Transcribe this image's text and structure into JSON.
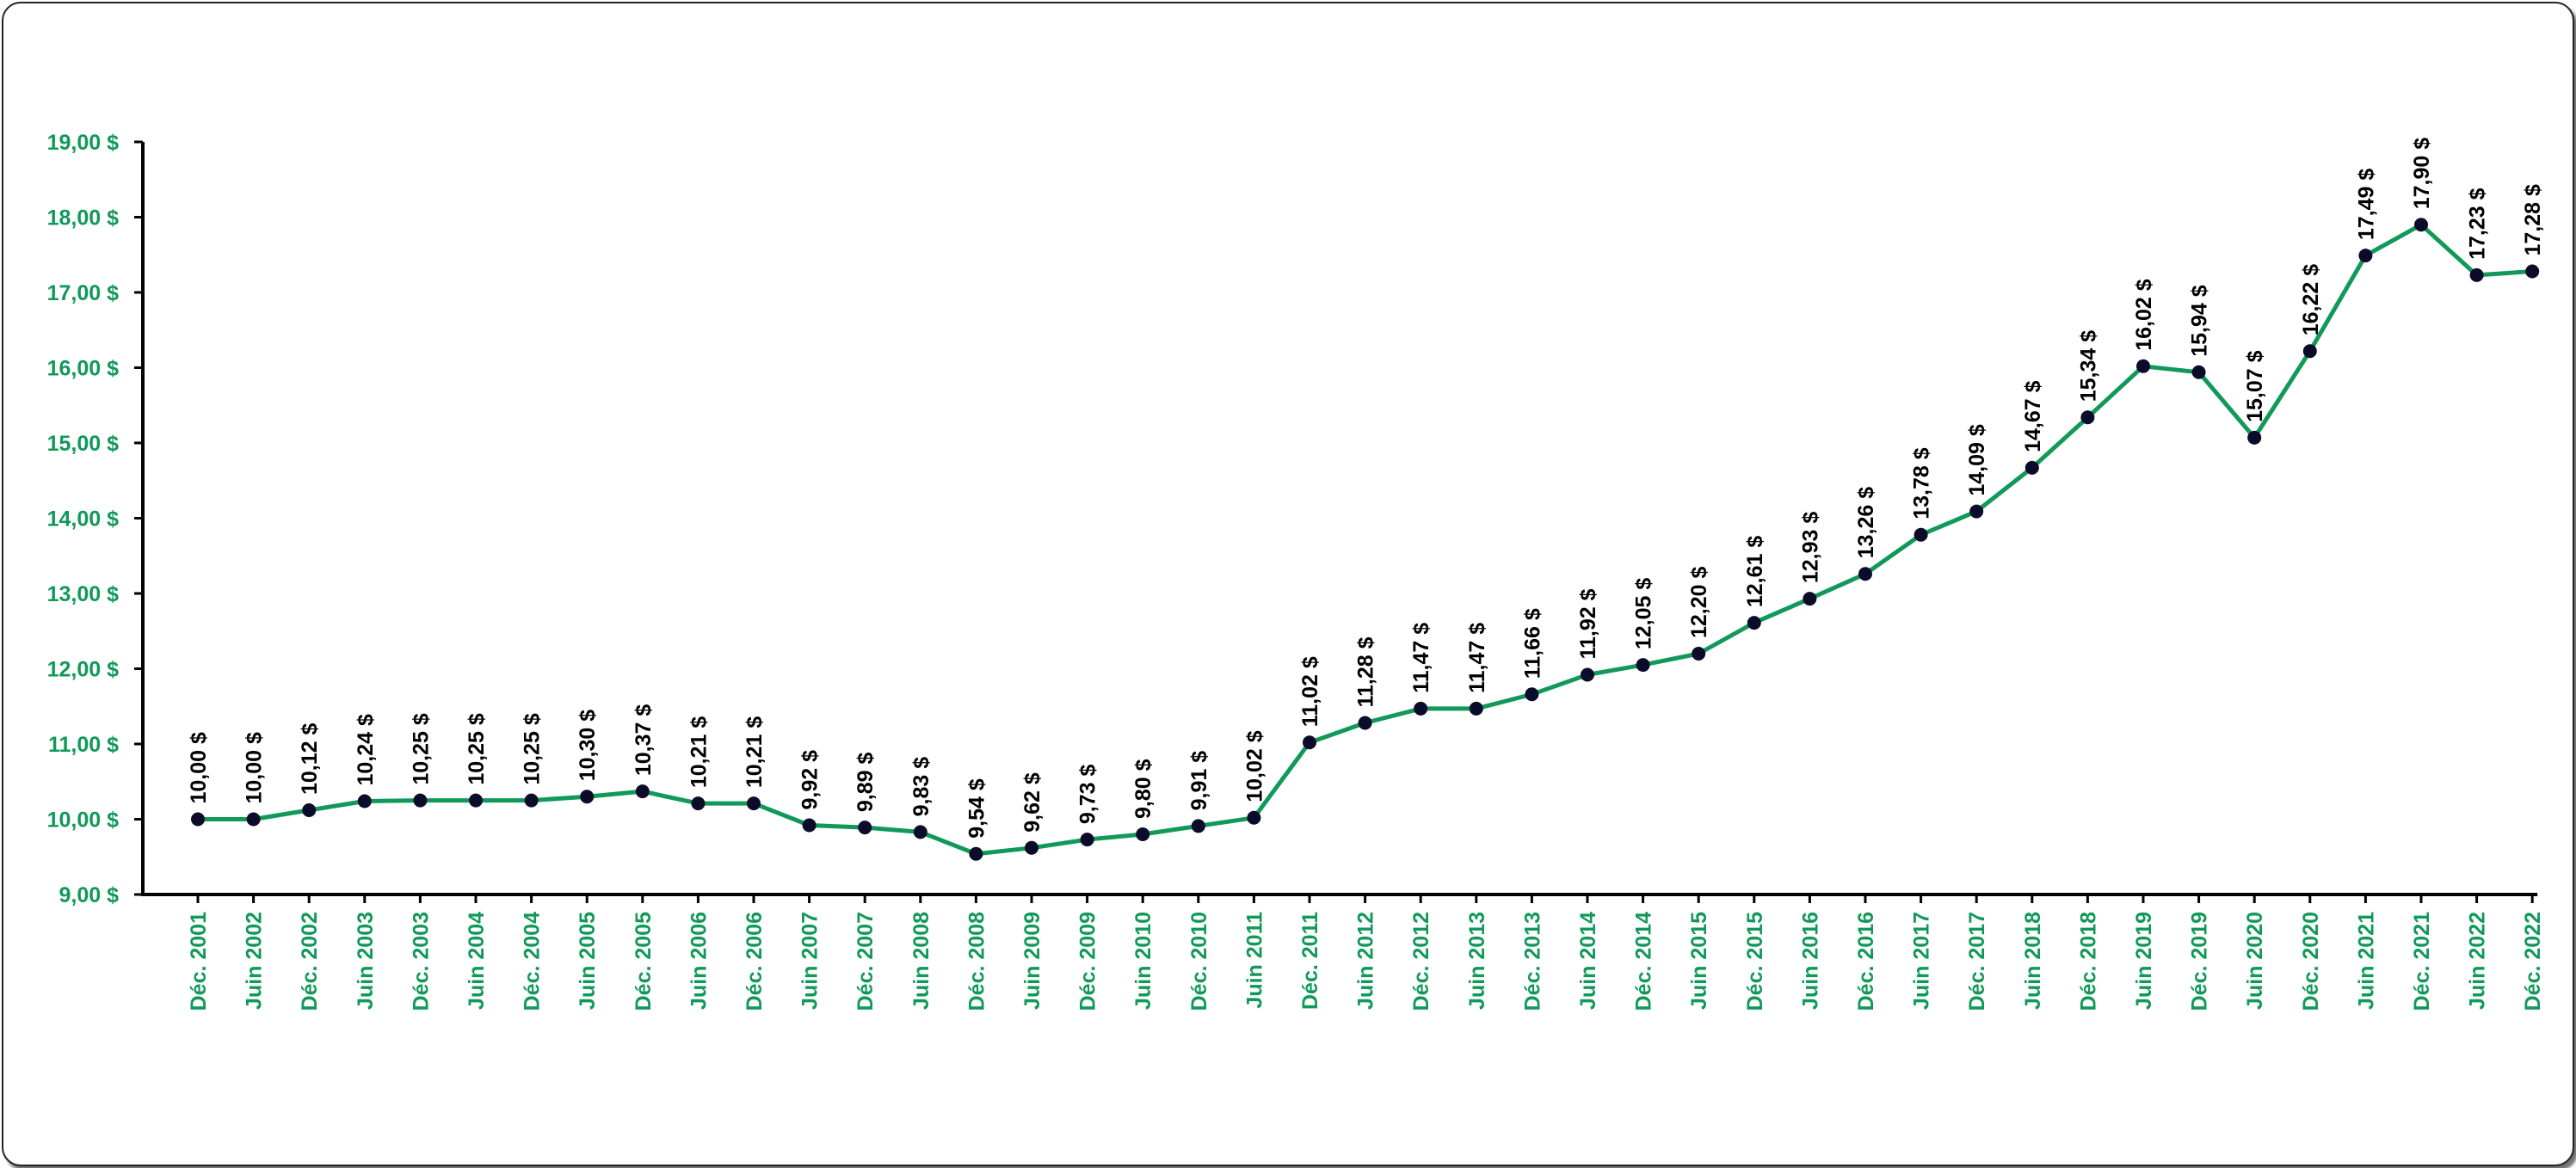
{
  "chart_data": {
    "type": "line",
    "title": "",
    "xlabel": "",
    "ylabel": "",
    "ylim": [
      9,
      19
    ],
    "yticks": [
      "9,00 $",
      "10,00 $",
      "11,00 $",
      "12,00 $",
      "13,00 $",
      "14,00 $",
      "15,00 $",
      "16,00 $",
      "17,00 $",
      "18,00 $",
      "19,00 $"
    ],
    "categories": [
      "Déc. 2001",
      "Juin 2002",
      "Déc. 2002",
      "Juin 2003",
      "Déc. 2003",
      "Juin 2004",
      "Déc. 2004",
      "Juin 2005",
      "Déc. 2005",
      "Juin 2006",
      "Déc. 2006",
      "Juin 2007",
      "Déc. 2007",
      "Juin 2008",
      "Déc. 2008",
      "Juin 2009",
      "Déc. 2009",
      "Juin 2010",
      "Déc. 2010",
      "Juin 2011",
      "Déc. 2011",
      "Juin 2012",
      "Déc. 2012",
      "Juin 2013",
      "Déc. 2013",
      "Juin 2014",
      "Déc. 2014",
      "Juin 2015",
      "Déc. 2015",
      "Juin 2016",
      "Déc. 2016",
      "Juin 2017",
      "Déc. 2017",
      "Juin 2018",
      "Déc. 2018",
      "Juin 2019",
      "Déc. 2019",
      "Juin 2020",
      "Déc. 2020",
      "Juin 2021",
      "Déc. 2021",
      "Juin 2022",
      "Déc. 2022"
    ],
    "values": [
      10.0,
      10.0,
      10.12,
      10.24,
      10.25,
      10.25,
      10.25,
      10.3,
      10.37,
      10.21,
      10.21,
      9.92,
      9.89,
      9.83,
      9.54,
      9.62,
      9.73,
      9.8,
      9.91,
      10.02,
      11.02,
      11.28,
      11.47,
      11.47,
      11.66,
      11.92,
      12.05,
      12.2,
      12.61,
      12.93,
      13.26,
      13.78,
      14.09,
      14.67,
      15.34,
      16.02,
      15.94,
      15.07,
      16.22,
      17.49,
      17.9,
      17.23,
      17.28
    ],
    "data_labels": [
      "10,00 $",
      "10,00 $",
      "10,12 $",
      "10,24 $",
      "10,25 $",
      "10,25 $",
      "10,25 $",
      "10,30 $",
      "10,37 $",
      "10,21 $",
      "10,21 $",
      "9,92 $",
      "9,89 $",
      "9,83 $",
      "9,54 $",
      "9,62 $",
      "9,73 $",
      "9,80 $",
      "9,91 $",
      "10,02 $",
      "11,02 $",
      "11,28 $",
      "11,47 $",
      "11,47 $",
      "11,66 $",
      "11,92 $",
      "12,05 $",
      "12,20 $",
      "12,61 $",
      "12,93 $",
      "13,26 $",
      "13,78 $",
      "14,09 $",
      "14,67 $",
      "15,34 $",
      "16,02 $",
      "15,94 $",
      "15,07 $",
      "16,22 $",
      "17,49 $",
      "17,90 $",
      "17,23 $",
      "17,28 $"
    ],
    "grid": false,
    "legend": "none",
    "colors": {
      "line": "#119959",
      "marker": "#0b0b2a",
      "tick_labels": "#119959",
      "data_labels": "#000000",
      "axis": "#000000"
    }
  }
}
